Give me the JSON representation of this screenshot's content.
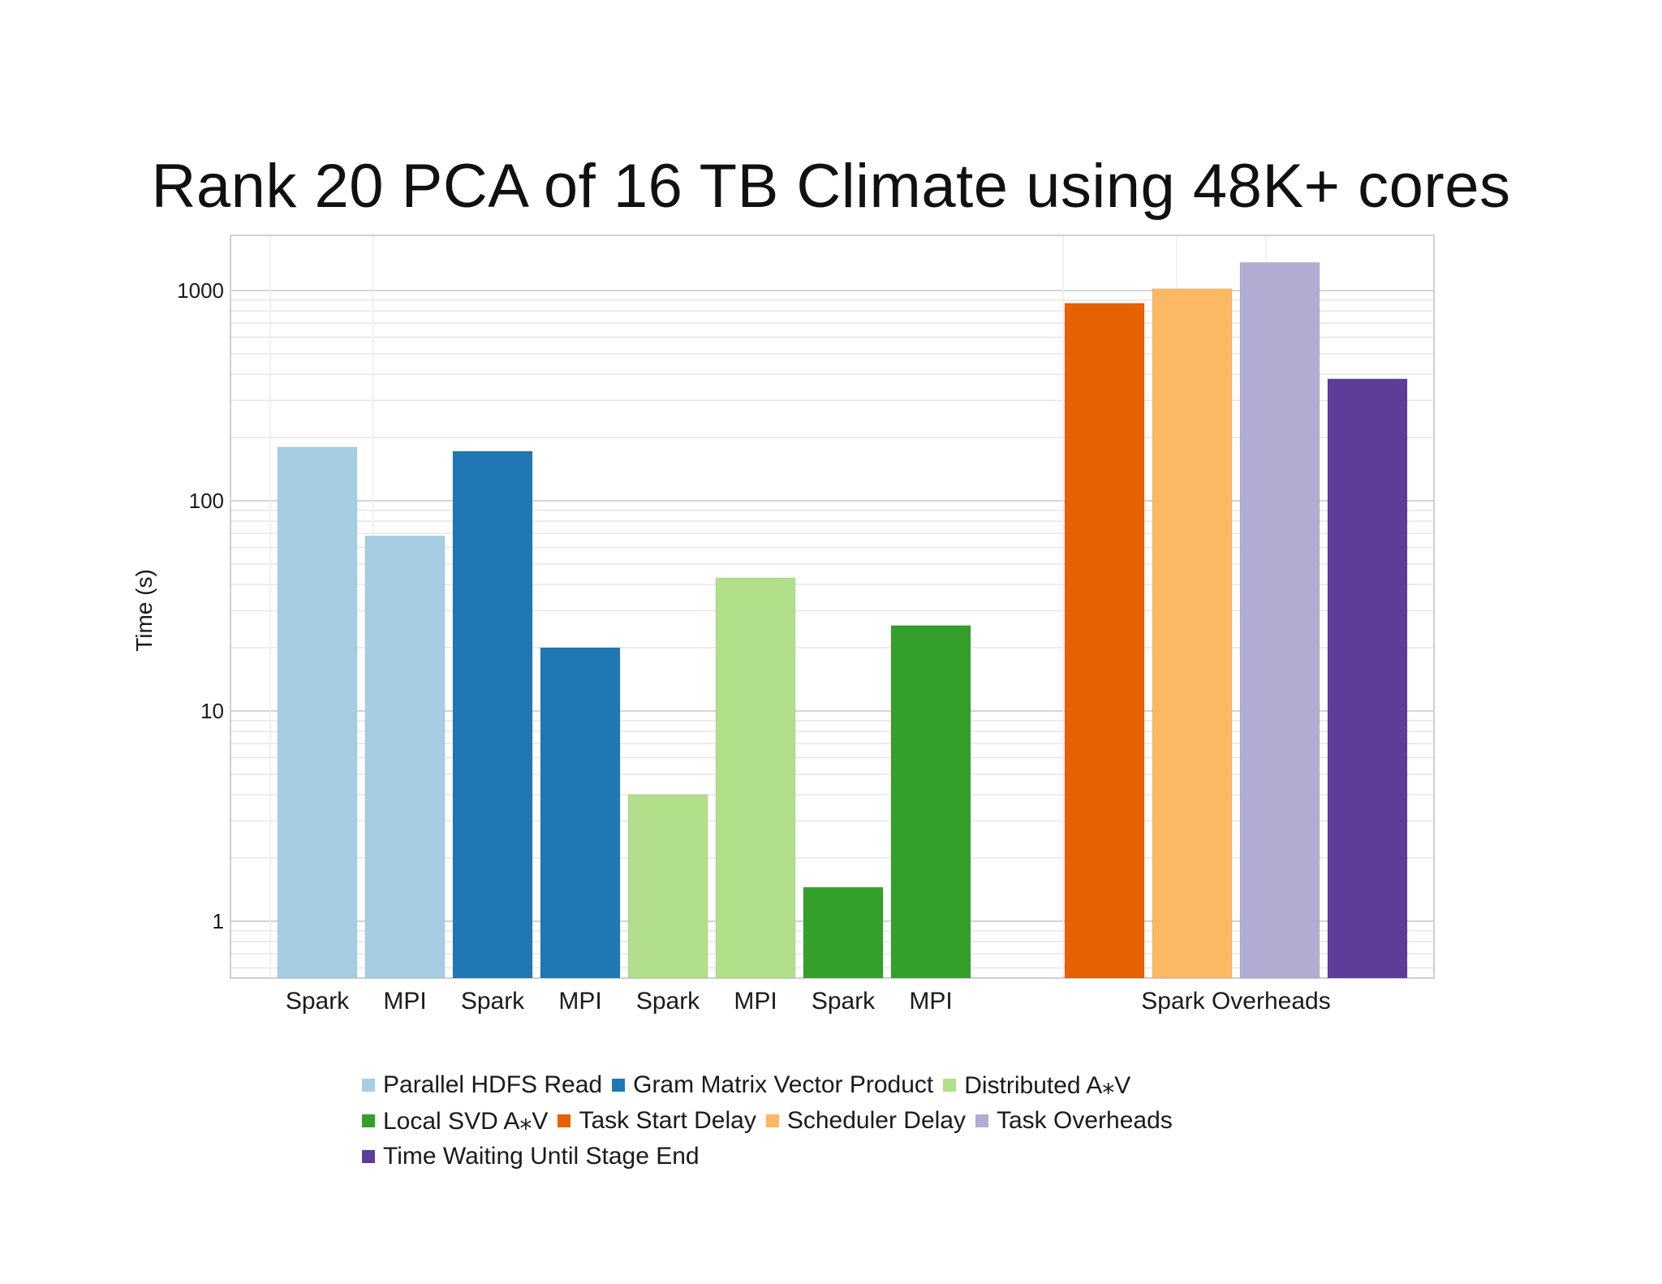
{
  "chart_data": {
    "type": "bar",
    "title": "Rank 20 PCA of 16 TB Climate using 48K+ cores",
    "ylabel": "Time (s)",
    "yscale": "log",
    "ylim": [
      0.5,
      1700
    ],
    "yticks": [
      {
        "value": 1,
        "label": "1"
      },
      {
        "value": 10,
        "label": "10"
      },
      {
        "value": 100,
        "label": "100"
      },
      {
        "value": 1000,
        "label": "1000"
      }
    ],
    "grid": true,
    "legend_position": "bottom",
    "bars": [
      {
        "label": "Spark",
        "series": "Parallel HDFS Read",
        "value": 180
      },
      {
        "label": "MPI",
        "series": "Parallel HDFS Read",
        "value": 68
      },
      {
        "label": "Spark",
        "series": "Gram Matrix Vector Product",
        "value": 172
      },
      {
        "label": "MPI",
        "series": "Gram Matrix Vector Product",
        "value": 20
      },
      {
        "label": "Spark",
        "series": "Distributed A⁎V",
        "value": 4
      },
      {
        "label": "MPI",
        "series": "Distributed A⁎V",
        "value": 43
      },
      {
        "label": "Spark",
        "series": "Local SVD A⁎V",
        "value": 1.45
      },
      {
        "label": "MPI",
        "series": "Local SVD A⁎V",
        "value": 25.5
      },
      {
        "label": "",
        "series": "Task Start Delay",
        "value": 870
      },
      {
        "label": "",
        "series": "Scheduler Delay",
        "value": 1020
      },
      {
        "label": "",
        "series": "Task Overheads",
        "value": 1360
      },
      {
        "label": "",
        "series": "Time Waiting Until Stage End",
        "value": 380
      }
    ],
    "group_label": "Spark Overheads",
    "series": [
      {
        "name": "Parallel HDFS Read",
        "color": "#a6cee3"
      },
      {
        "name": "Gram Matrix Vector Product",
        "color": "#1f78b4"
      },
      {
        "name": "Distributed A⁎V",
        "color": "#b2df8a"
      },
      {
        "name": "Local SVD A⁎V",
        "color": "#33a02c"
      },
      {
        "name": "Task Start Delay",
        "color": "#e66101"
      },
      {
        "name": "Scheduler Delay",
        "color": "#fdb863"
      },
      {
        "name": "Task Overheads",
        "color": "#b2abd2"
      },
      {
        "name": "Time Waiting Until Stage End",
        "color": "#5e3c99"
      }
    ],
    "legend_rows": [
      [
        "Parallel HDFS Read",
        "Gram Matrix Vector Product",
        "Distributed A⁎V"
      ],
      [
        "Local SVD A⁎V",
        "Task Start Delay",
        "Scheduler Delay",
        "Task Overheads"
      ],
      [
        "Time Waiting Until Stage End"
      ]
    ]
  }
}
